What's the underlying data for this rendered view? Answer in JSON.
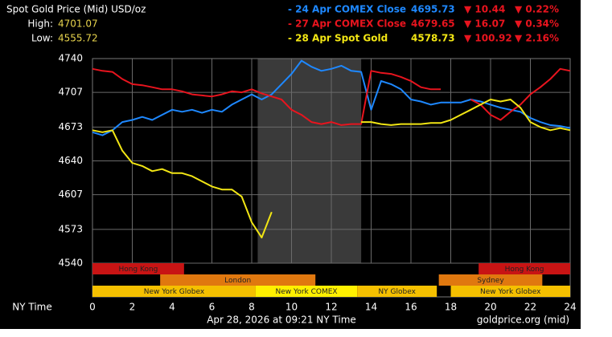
{
  "chart_data": {
    "type": "line",
    "title": "Spot Gold Price (Mid) USD/oz",
    "stats": [
      {
        "label": "High:",
        "value": 4701.07
      },
      {
        "label": "Low:",
        "value": 4555.72
      }
    ],
    "x_label": "NY Time",
    "footer": "Apr 28, 2026 at 09:21 NY Time",
    "source": "goldprice.org (mid)",
    "xlim": [
      0,
      24
    ],
    "xticks": [
      0,
      2,
      4,
      6,
      8,
      10,
      12,
      14,
      16,
      18,
      20,
      22,
      24
    ],
    "ylim": [
      4540,
      4740
    ],
    "yticks": [
      4540,
      4573,
      4607,
      4640,
      4673,
      4707,
      4740
    ],
    "grid": true,
    "shaded_range": [
      8.3,
      13.5
    ],
    "x": [
      0,
      0.5,
      1,
      1.5,
      2,
      2.5,
      3,
      3.5,
      4,
      4.5,
      5,
      5.5,
      6,
      6.5,
      7,
      7.5,
      8,
      8.5,
      9,
      9.5,
      10,
      10.5,
      11,
      11.5,
      12,
      12.5,
      13,
      13.5,
      14,
      14.5,
      15,
      15.5,
      16,
      16.5,
      17,
      17.5,
      18,
      18.5,
      19,
      19.5,
      20,
      20.5,
      21,
      21.5,
      22,
      22.5,
      23,
      23.5,
      24
    ],
    "series": [
      {
        "name": "- 24 Apr COMEX Close",
        "color": "#1e88ff",
        "price": 4695.73,
        "change": "▼ 10.44",
        "percent": "▼ 0.22%",
        "values": [
          4668,
          4665,
          4670,
          4678,
          4680,
          4683,
          4680,
          4685,
          4690,
          4688,
          4690,
          4687,
          4690,
          4688,
          4695,
          4700,
          4705,
          4700,
          4705,
          4715,
          4725,
          4738,
          4732,
          4728,
          4730,
          4733,
          4728,
          4727,
          4690,
          4718,
          4715,
          4710,
          4700,
          4698,
          4695,
          4697,
          4697,
          4697,
          4700,
          4698,
          4695,
          4692,
          4690,
          4688,
          4682,
          4678,
          4675,
          4674,
          4672
        ]
      },
      {
        "name": "- 27 Apr COMEX Close",
        "color": "#e8141e",
        "price": 4679.65,
        "change": "▼ 16.07",
        "percent": "▼ 0.34%",
        "values": [
          4730,
          4728,
          4727,
          4720,
          4715,
          4714,
          4712,
          4710,
          4710,
          4708,
          4705,
          4704,
          4703,
          4705,
          4708,
          4707,
          4710,
          4706,
          4703,
          4700,
          4690,
          4685,
          4678,
          4676,
          4678,
          4675,
          4676,
          4676,
          4728,
          4726,
          4725,
          4722,
          4718,
          4712,
          4710,
          4710,
          null,
          null,
          4700,
          4695,
          4685,
          4680,
          4688,
          4695,
          4705,
          4712,
          4720,
          4730,
          4728
        ]
      },
      {
        "name": "- 28 Apr Spot Gold",
        "color": "#f2e614",
        "price": 4578.73,
        "change": "▼ 100.92",
        "percent": "▼ 2.16%",
        "values": [
          4670,
          4668,
          4670,
          4650,
          4638,
          4635,
          4630,
          4632,
          4628,
          4628,
          4625,
          4620,
          4615,
          4612,
          4612,
          4605,
          4580,
          4565,
          4590,
          null,
          null,
          null,
          null,
          null,
          null,
          null,
          null,
          4678,
          4678,
          4676,
          4675,
          4676,
          4676,
          4676,
          4677,
          4677,
          4680,
          4685,
          4690,
          4695,
          4700,
          4698,
          4700,
          4692,
          4678,
          4673,
          4670,
          4672,
          4670
        ]
      }
    ],
    "sessions": [
      [
        {
          "name": "Hong Kong",
          "start": 0,
          "end": 4.6,
          "color": "#c81414"
        },
        {
          "name": "Hong Kong",
          "start": 19.4,
          "end": 24,
          "color": "#c81414"
        }
      ],
      [
        {
          "name": "London",
          "start": 3.4,
          "end": 11.2,
          "color": "#e0780f"
        },
        {
          "name": "Sydney",
          "start": 17.4,
          "end": 22.6,
          "color": "#e0780f"
        }
      ],
      [
        {
          "name": "New York Globex",
          "start": 0,
          "end": 8.2,
          "color": "#f5c000"
        },
        {
          "name": "New York COMEX",
          "start": 8.2,
          "end": 13.3,
          "color": "#fff000"
        },
        {
          "name": "NY Globex",
          "start": 13.3,
          "end": 17.3,
          "color": "#f5c000"
        },
        {
          "name": "New York Globex",
          "start": 18,
          "end": 24,
          "color": "#f5c000"
        }
      ]
    ]
  }
}
